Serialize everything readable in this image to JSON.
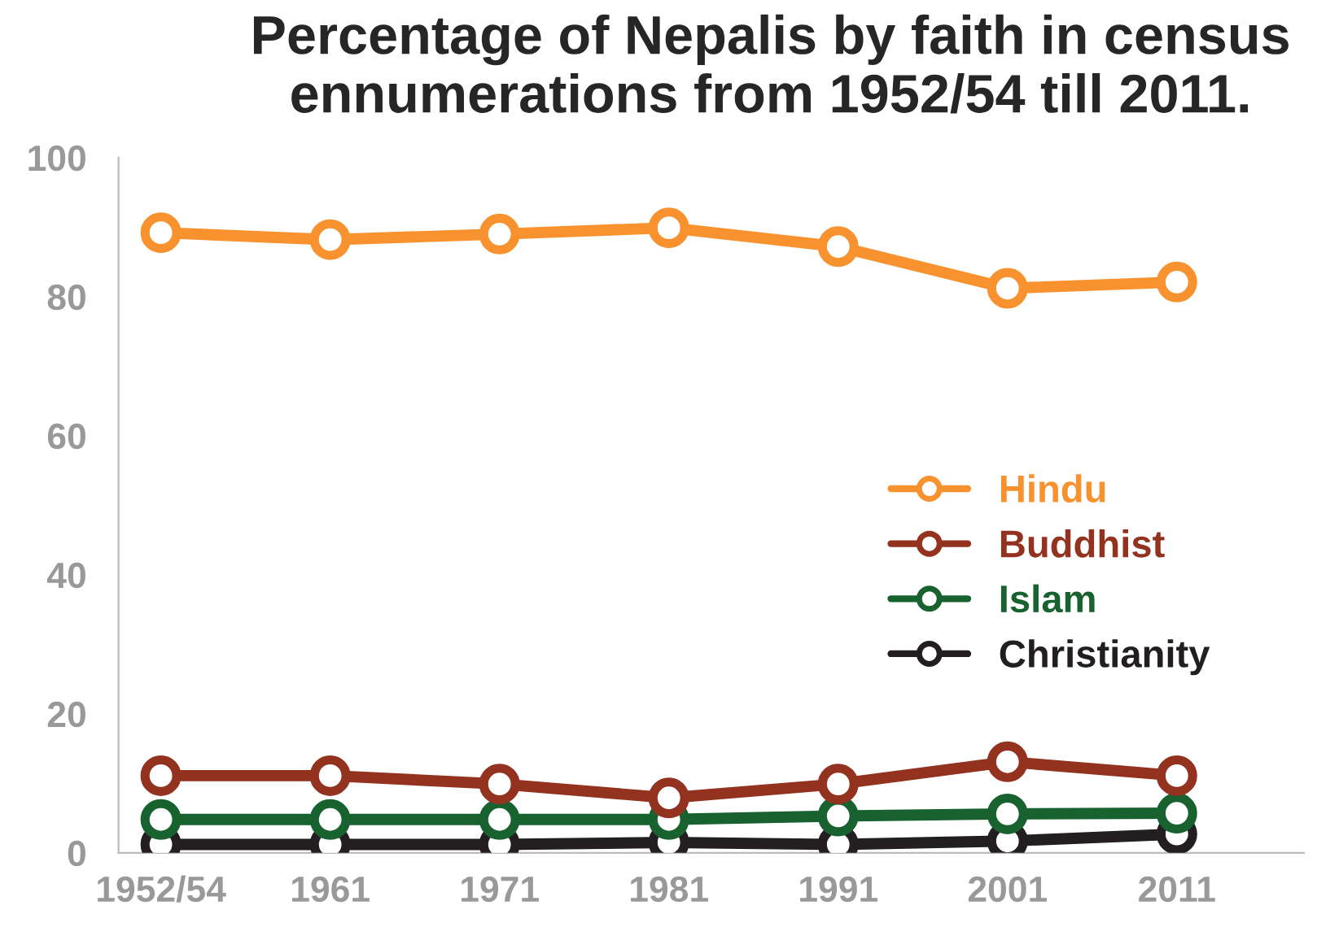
{
  "chart_data": {
    "type": "line",
    "title": "Percentage of Nepalis by faith in census\nennumerations from 1952/54 till 2011.",
    "categories": [
      "1952/54",
      "1961",
      "1971",
      "1981",
      "1991",
      "2001",
      "2011"
    ],
    "series": [
      {
        "name": "Hindu",
        "color": "#f7922e",
        "values": [
          89.2,
          88.2,
          89.0,
          89.9,
          87.2,
          81.2,
          82.1
        ]
      },
      {
        "name": "Buddhist",
        "color": "#93321f",
        "values": [
          11.1,
          11.1,
          9.9,
          7.9,
          9.9,
          13.1,
          11.1
        ]
      },
      {
        "name": "Islam",
        "color": "#17622e",
        "values": [
          4.8,
          4.8,
          4.8,
          4.8,
          5.3,
          5.6,
          5.7
        ]
      },
      {
        "name": "Christianity",
        "color": "#231f20",
        "values": [
          1.2,
          1.2,
          1.2,
          1.5,
          1.2,
          1.7,
          2.7
        ]
      }
    ],
    "ylim": [
      0,
      100
    ],
    "yticks": [
      0,
      20,
      40,
      60,
      80,
      100
    ],
    "grid": false,
    "legend": "right",
    "marker": "circle",
    "line_style": "solid"
  }
}
